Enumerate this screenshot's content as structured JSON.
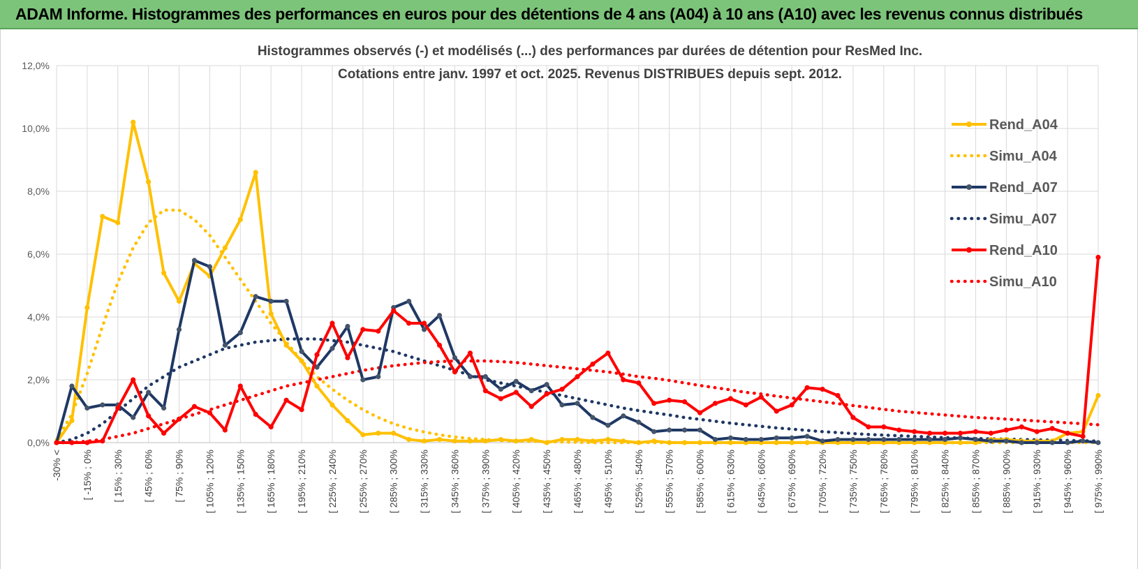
{
  "header": {
    "title": "ADAM Informe. Histogrammes des performances en euros pour des détentions de 4 ans (A04) à 10 ans (A10) avec les revenus connus distribués"
  },
  "chart_data": {
    "type": "line",
    "title_line1": "Histogrammes observés (-) et modélisés (...) des performances par durées de détention pour ResMed Inc.",
    "title_line2": "Cotations entre janv. 1997 et oct. 2025.  Revenus DISTRIBUES depuis sept. 2012.",
    "ylim": [
      0,
      12
    ],
    "yticks": [
      "0,0%",
      "2,0%",
      "4,0%",
      "6,0%",
      "8,0%",
      "10,0%",
      "12,0%"
    ],
    "xlabels": [
      "-30% <",
      "[ -15% ; 0%",
      "[ 15% ; 30%",
      "[ 45% ; 60%",
      "[ 75% ; 90%",
      "[ 105% ; 120%",
      "[ 135% ; 150%",
      "[ 165% ; 180%",
      "[ 195% ; 210%",
      "[ 225% ; 240%",
      "[ 255% ; 270%",
      "[ 285% ; 300%",
      "[ 315% ; 330%",
      "[ 345% ; 360%",
      "[ 375% ; 390%",
      "[ 405% ; 420%",
      "[ 435% ; 450%",
      "[ 465% ; 480%",
      "[ 495% ; 510%",
      "[ 525% ; 540%",
      "[ 555% ; 570%",
      "[ 585% ; 600%",
      "[ 615% ; 630%",
      "[ 645% ; 660%",
      "[ 675% ; 690%",
      "[ 705% ; 720%",
      "[ 735% ; 750%",
      "[ 765% ; 780%",
      "[ 795% ; 810%",
      "[ 825% ; 840%",
      "[ 855% ; 870%",
      "[ 885% ; 900%",
      "[ 915% ; 930%",
      "[ 945% ; 960%",
      "[ 975% ; 990%"
    ],
    "n_points": 69,
    "series": [
      {
        "name": "Rend_A04",
        "style": "solid",
        "color": "#ffc000",
        "values": [
          0,
          0.7,
          4.3,
          7.2,
          7.0,
          10.2,
          8.3,
          5.4,
          4.5,
          5.7,
          5.3,
          6.2,
          7.1,
          8.6,
          4.1,
          3.1,
          2.6,
          1.8,
          1.2,
          0.7,
          0.25,
          0.3,
          0.3,
          0.1,
          0.05,
          0.1,
          0.05,
          0.05,
          0.05,
          0.1,
          0.05,
          0.1,
          0,
          0.1,
          0.1,
          0.05,
          0.1,
          0.05,
          0,
          0.05,
          0,
          0,
          0,
          0,
          0,
          0,
          0,
          0,
          0,
          0,
          0,
          0,
          0,
          0,
          0,
          0,
          0,
          0,
          0,
          0,
          0,
          0.1,
          0.1,
          0.05,
          0.05,
          0.05,
          0.3,
          0.35,
          1.5
        ]
      },
      {
        "name": "Simu_A04",
        "style": "dotted",
        "color": "#ffc000",
        "values": [
          0.1,
          0.9,
          2.2,
          3.7,
          5.1,
          6.2,
          7.0,
          7.4,
          7.4,
          7.1,
          6.6,
          5.9,
          5.2,
          4.5,
          3.8,
          3.2,
          2.6,
          2.1,
          1.7,
          1.35,
          1.05,
          0.8,
          0.6,
          0.45,
          0.34,
          0.25,
          0.18,
          0.13,
          0.1,
          0.07,
          0.05,
          0.04,
          0.03,
          0.02,
          0.01,
          0,
          0,
          0,
          0,
          0,
          0,
          0,
          0,
          0,
          0,
          0,
          0,
          0,
          0,
          0,
          0,
          0,
          0,
          0,
          0,
          0,
          0,
          0,
          0,
          0,
          0,
          0,
          0,
          0,
          0,
          0,
          0,
          0,
          0
        ]
      },
      {
        "name": "Rend_A07",
        "style": "solid",
        "color": "#1f3864",
        "values": [
          0,
          1.8,
          1.1,
          1.2,
          1.2,
          0.8,
          1.6,
          1.1,
          3.6,
          5.8,
          5.6,
          3.1,
          3.5,
          4.65,
          4.5,
          4.5,
          2.9,
          2.4,
          3.0,
          3.7,
          2.0,
          2.1,
          4.3,
          4.5,
          3.6,
          4.05,
          2.7,
          2.1,
          2.1,
          1.7,
          1.95,
          1.65,
          1.85,
          1.2,
          1.25,
          0.8,
          0.55,
          0.85,
          0.65,
          0.35,
          0.4,
          0.4,
          0.4,
          0.1,
          0.15,
          0.1,
          0.1,
          0.15,
          0.15,
          0.2,
          0.05,
          0.1,
          0.1,
          0.1,
          0.1,
          0.1,
          0.1,
          0.1,
          0.1,
          0.15,
          0.1,
          0.05,
          0.05,
          0,
          0,
          0,
          0,
          0.05,
          0
        ]
      },
      {
        "name": "Simu_A07",
        "style": "dotted",
        "color": "#1f3864",
        "values": [
          0,
          0.1,
          0.3,
          0.6,
          1.0,
          1.4,
          1.8,
          2.1,
          2.4,
          2.6,
          2.8,
          3.0,
          3.1,
          3.2,
          3.25,
          3.3,
          3.3,
          3.3,
          3.25,
          3.2,
          3.1,
          3.0,
          2.9,
          2.75,
          2.6,
          2.45,
          2.3,
          2.15,
          2.0,
          1.9,
          1.8,
          1.7,
          1.6,
          1.5,
          1.4,
          1.3,
          1.2,
          1.1,
          1.02,
          0.95,
          0.88,
          0.8,
          0.74,
          0.68,
          0.62,
          0.57,
          0.52,
          0.47,
          0.43,
          0.39,
          0.35,
          0.32,
          0.29,
          0.26,
          0.24,
          0.22,
          0.2,
          0.18,
          0.16,
          0.15,
          0.13,
          0.12,
          0.11,
          0.1,
          0.09,
          0.08,
          0.07,
          0.06,
          0.05
        ]
      },
      {
        "name": "Rend_A10",
        "style": "solid",
        "color": "#ff0000",
        "values": [
          0,
          0,
          0,
          0.05,
          1.1,
          2.0,
          0.85,
          0.3,
          0.75,
          1.15,
          0.95,
          0.4,
          1.8,
          0.9,
          0.5,
          1.35,
          1.05,
          2.8,
          3.8,
          2.7,
          3.6,
          3.55,
          4.2,
          3.8,
          3.8,
          3.1,
          2.25,
          2.85,
          1.65,
          1.4,
          1.6,
          1.15,
          1.55,
          1.7,
          2.1,
          2.5,
          2.85,
          2.0,
          1.9,
          1.25,
          1.35,
          1.3,
          0.95,
          1.25,
          1.4,
          1.2,
          1.45,
          1.0,
          1.2,
          1.75,
          1.7,
          1.5,
          0.8,
          0.5,
          0.5,
          0.4,
          0.35,
          0.3,
          0.3,
          0.3,
          0.35,
          0.3,
          0.4,
          0.5,
          0.35,
          0.45,
          0.3,
          0.2,
          5.9
        ]
      },
      {
        "name": "Simu_A10",
        "style": "dotted",
        "color": "#ff0000",
        "values": [
          0,
          0,
          0.05,
          0.1,
          0.2,
          0.3,
          0.45,
          0.6,
          0.75,
          0.9,
          1.05,
          1.2,
          1.35,
          1.5,
          1.65,
          1.8,
          1.9,
          2.0,
          2.1,
          2.2,
          2.3,
          2.38,
          2.45,
          2.5,
          2.55,
          2.58,
          2.6,
          2.6,
          2.6,
          2.58,
          2.55,
          2.5,
          2.45,
          2.4,
          2.35,
          2.3,
          2.25,
          2.18,
          2.1,
          2.05,
          1.98,
          1.9,
          1.82,
          1.75,
          1.68,
          1.6,
          1.55,
          1.48,
          1.42,
          1.36,
          1.3,
          1.24,
          1.18,
          1.12,
          1.06,
          1.0,
          0.96,
          0.92,
          0.88,
          0.84,
          0.8,
          0.78,
          0.75,
          0.72,
          0.69,
          0.66,
          0.63,
          0.6,
          0.57
        ]
      }
    ],
    "legend": [
      {
        "label": "Rend_A04"
      },
      {
        "label": "Simu_A04"
      },
      {
        "label": "Rend_A07"
      },
      {
        "label": "Simu_A07"
      },
      {
        "label": "Rend_A10"
      },
      {
        "label": "Simu_A10"
      }
    ]
  }
}
